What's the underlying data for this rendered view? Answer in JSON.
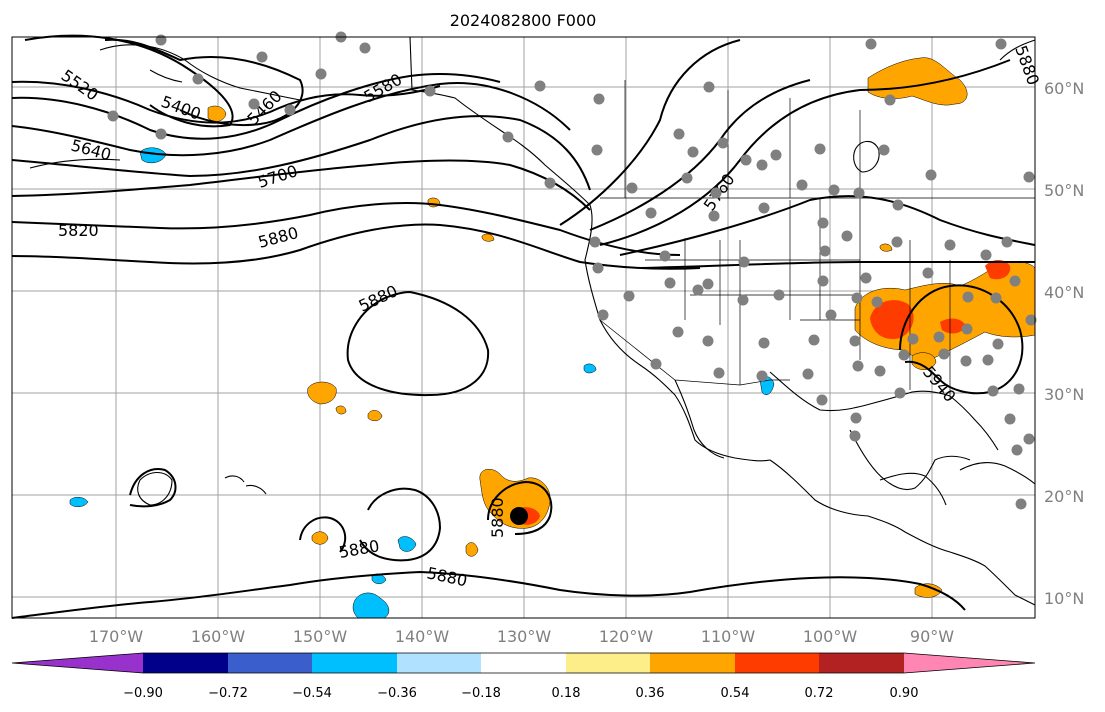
{
  "map": {
    "title": "2024082800 F000",
    "lat_labels": [
      "60°N",
      "50°N",
      "40°N",
      "30°N",
      "20°N",
      "10°N"
    ],
    "lon_labels": [
      "170°W",
      "160°W",
      "150°W",
      "140°W",
      "130°W",
      "120°W",
      "110°W",
      "100°W",
      "90°W"
    ],
    "contour_labels": [
      "5520",
      "5400",
      "5460",
      "5580",
      "5640",
      "5700",
      "5820",
      "5880",
      "5880",
      "5760",
      "5880",
      "5880",
      "5880",
      "5880",
      "5940"
    ],
    "station_marker_color": "#808080",
    "storm_marker_color": "#000000"
  },
  "colorbar": {
    "ticks": [
      "−0.90",
      "−0.72",
      "−0.54",
      "−0.36",
      "−0.18",
      "0.18",
      "0.36",
      "0.54",
      "0.72",
      "0.90"
    ],
    "colors": [
      "#9932cc",
      "#00008b",
      "#3a5fcd",
      "#00bfff",
      "#b0e2ff",
      "#ffffff",
      "#fdee8a",
      "#ffa500",
      "#ff3c00",
      "#b22222",
      "#ff85b3"
    ]
  }
}
